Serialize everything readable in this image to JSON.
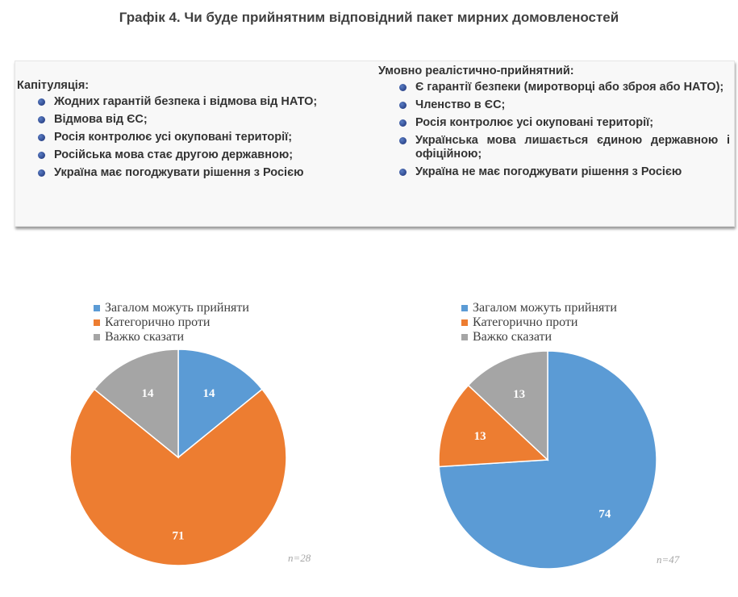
{
  "title": "Графік 4. Чи буде прийнятним відповідний пакет мирних домовленостей",
  "panel": {
    "left": {
      "heading": "Капітуляція:",
      "items": [
        "Жодних гарантій безпека і відмова від НАТО;",
        "Відмова від ЄС;",
        "Росія контролює усі окуповані території;",
        "Російська мова стає другою державною;",
        "Україна має погоджувати рішення з Росією"
      ]
    },
    "right": {
      "heading": "Умовно реалістично-прийнятний:",
      "items": [
        "Є гарантії безпеки (миротворці або зброя або НАТО);",
        "Членство в ЄС;",
        "Росія контролює усі окуповані території;",
        "Українська мова лишається єдиною державною і офіційною;",
        "Україна не має погоджувати рішення з Росією"
      ]
    }
  },
  "colors": {
    "accept": "#5b9bd5",
    "against": "#ed7d31",
    "unsure": "#a5a5a5",
    "bullet": "#1f3a8a"
  },
  "chart_data": [
    {
      "type": "pie",
      "title": "",
      "categories": [
        "Загалом можуть прийняти",
        "Категорично проти",
        "Важко сказати"
      ],
      "values": [
        14,
        71,
        14
      ],
      "legend": "top-left",
      "note": "n=28"
    },
    {
      "type": "pie",
      "title": "",
      "categories": [
        "Загалом можуть прийняти",
        "Категорично проти",
        "Важко сказати"
      ],
      "values": [
        74,
        13,
        13
      ],
      "legend": "top-left",
      "note": "n=47"
    }
  ]
}
